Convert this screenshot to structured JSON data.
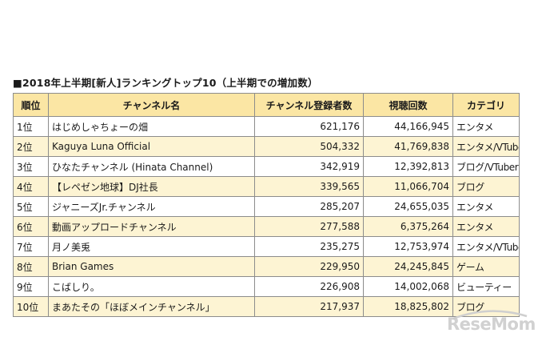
{
  "title": "■2018年上半期[新人]ランキングトップ10（上半期での増加数）",
  "table": {
    "headers": [
      "順位",
      "チャンネル名",
      "チャンネル登録者数",
      "視聴回数",
      "カテゴリ"
    ],
    "rows": [
      {
        "rank": "1位",
        "name": "はじめしゃちょーの畑",
        "subscribers": "621,176",
        "views": "44,166,945",
        "category": "エンタメ"
      },
      {
        "rank": "2位",
        "name": "Kaguya Luna Official",
        "subscribers": "504,332",
        "views": "41,769,838",
        "category": "エンタメ/VTuber"
      },
      {
        "rank": "3位",
        "name": "ひなたチャンネル (Hinata Channel)",
        "subscribers": "342,919",
        "views": "12,392,813",
        "category": "ブログ/VTuber"
      },
      {
        "rank": "4位",
        "name": "【レペゼン地球】DJ社長",
        "subscribers": "339,565",
        "views": "11,066,704",
        "category": "ブログ"
      },
      {
        "rank": "5位",
        "name": "ジャニーズJr.チャンネル",
        "subscribers": "285,207",
        "views": "24,655,035",
        "category": "エンタメ"
      },
      {
        "rank": "6位",
        "name": "動画アップロードチャンネル",
        "subscribers": "277,588",
        "views": "6,375,264",
        "category": "エンタメ"
      },
      {
        "rank": "7位",
        "name": "月ノ美兎",
        "subscribers": "235,275",
        "views": "12,753,974",
        "category": "エンタメ/VTuber"
      },
      {
        "rank": "8位",
        "name": "Brian Games",
        "subscribers": "229,950",
        "views": "24,245,845",
        "category": "ゲーム"
      },
      {
        "rank": "9位",
        "name": "こばしり。",
        "subscribers": "226,908",
        "views": "14,002,068",
        "category": "ビューティー"
      },
      {
        "rank": "10位",
        "name": "まあたその「ほぼメインチャンネル」",
        "subscribers": "217,937",
        "views": "18,825,802",
        "category": "ブログ"
      }
    ]
  },
  "watermark": "ReseMom",
  "colors": {
    "header_bg": "#fbe6a4",
    "even_row_bg": "#fdf4d3",
    "odd_row_bg": "#ffffff",
    "border": "#8c8c8c"
  }
}
